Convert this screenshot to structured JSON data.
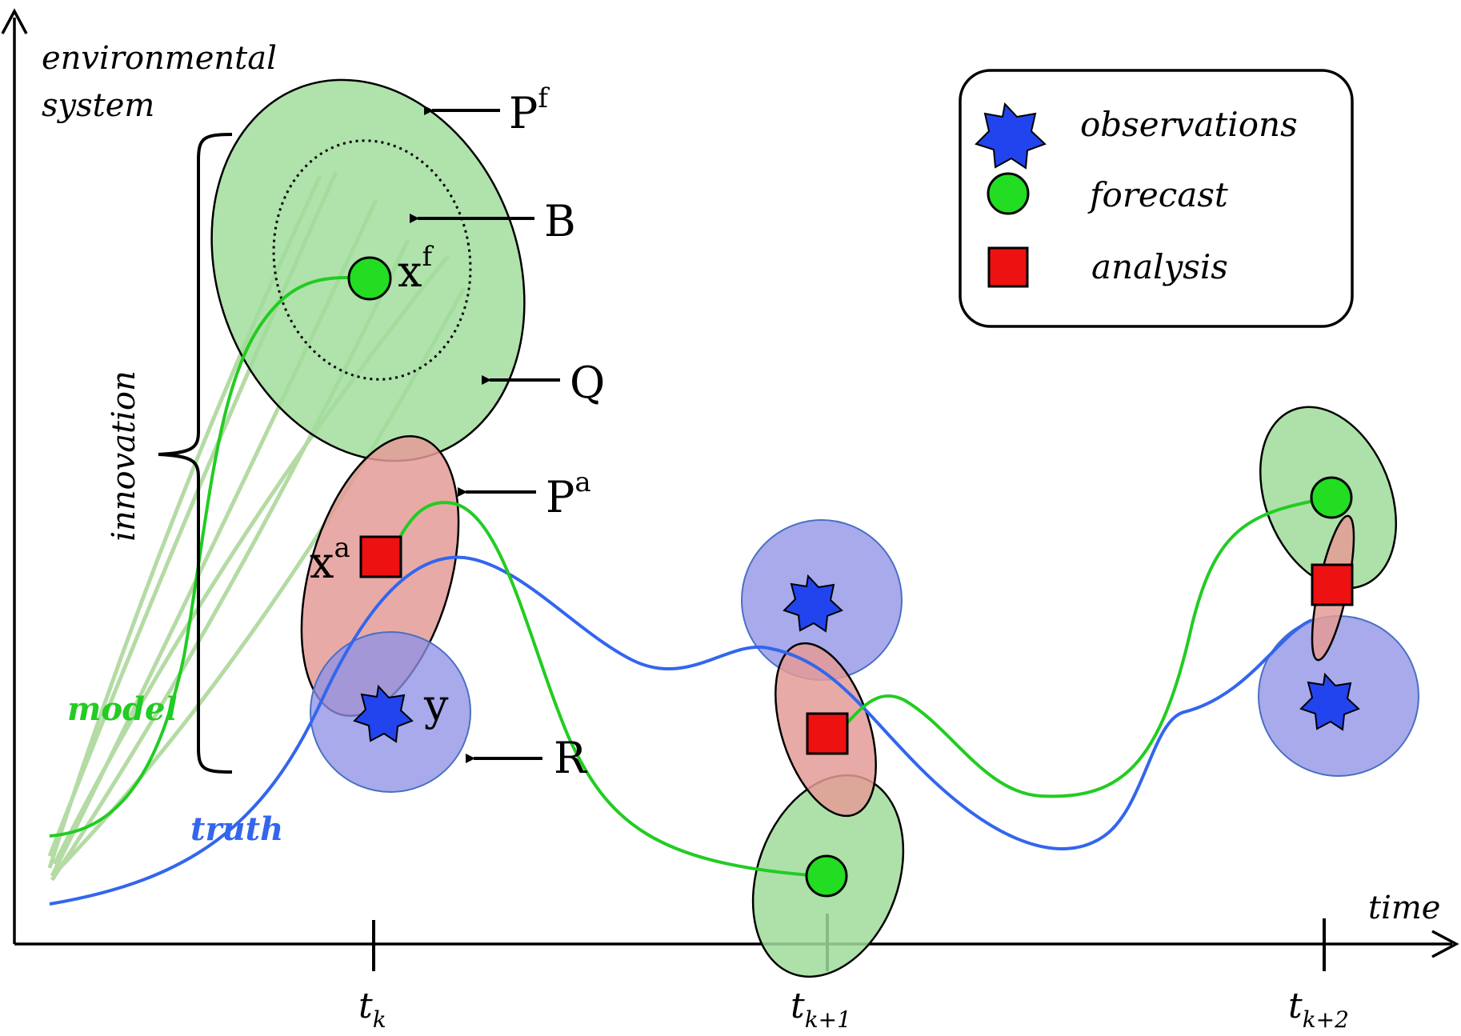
{
  "axes": {
    "y_label_line1": "environmental",
    "y_label_line2": "system",
    "x_label": "time"
  },
  "ticks": [
    {
      "base": "t",
      "sub": "k"
    },
    {
      "base": "t",
      "sub": "k+1"
    },
    {
      "base": "t",
      "sub": "k+2"
    }
  ],
  "curves": {
    "model_label": "model",
    "truth_label": "truth",
    "model_color": "#22cc22",
    "truth_color": "#3366ee"
  },
  "labels": {
    "Pf_base": "P",
    "Pf_sup": "f",
    "B": "B",
    "xf_base": "x",
    "xf_sup": "f",
    "Q": "Q",
    "Pa_base": "P",
    "Pa_sup": "a",
    "xa_base": "x",
    "xa_sup": "a",
    "y": "y",
    "R": "R",
    "innovation": "innovation"
  },
  "legend": {
    "observations": "observations",
    "forecast": "forecast",
    "analysis": "analysis"
  },
  "colors": {
    "forecast_fill": "#9fdc9a",
    "analysis_fill": "#e49b96",
    "obs_fill": "#8f92e6",
    "forecast_point": "#22dd22",
    "analysis_point": "#ee1111",
    "obs_star": "#2244ee"
  }
}
